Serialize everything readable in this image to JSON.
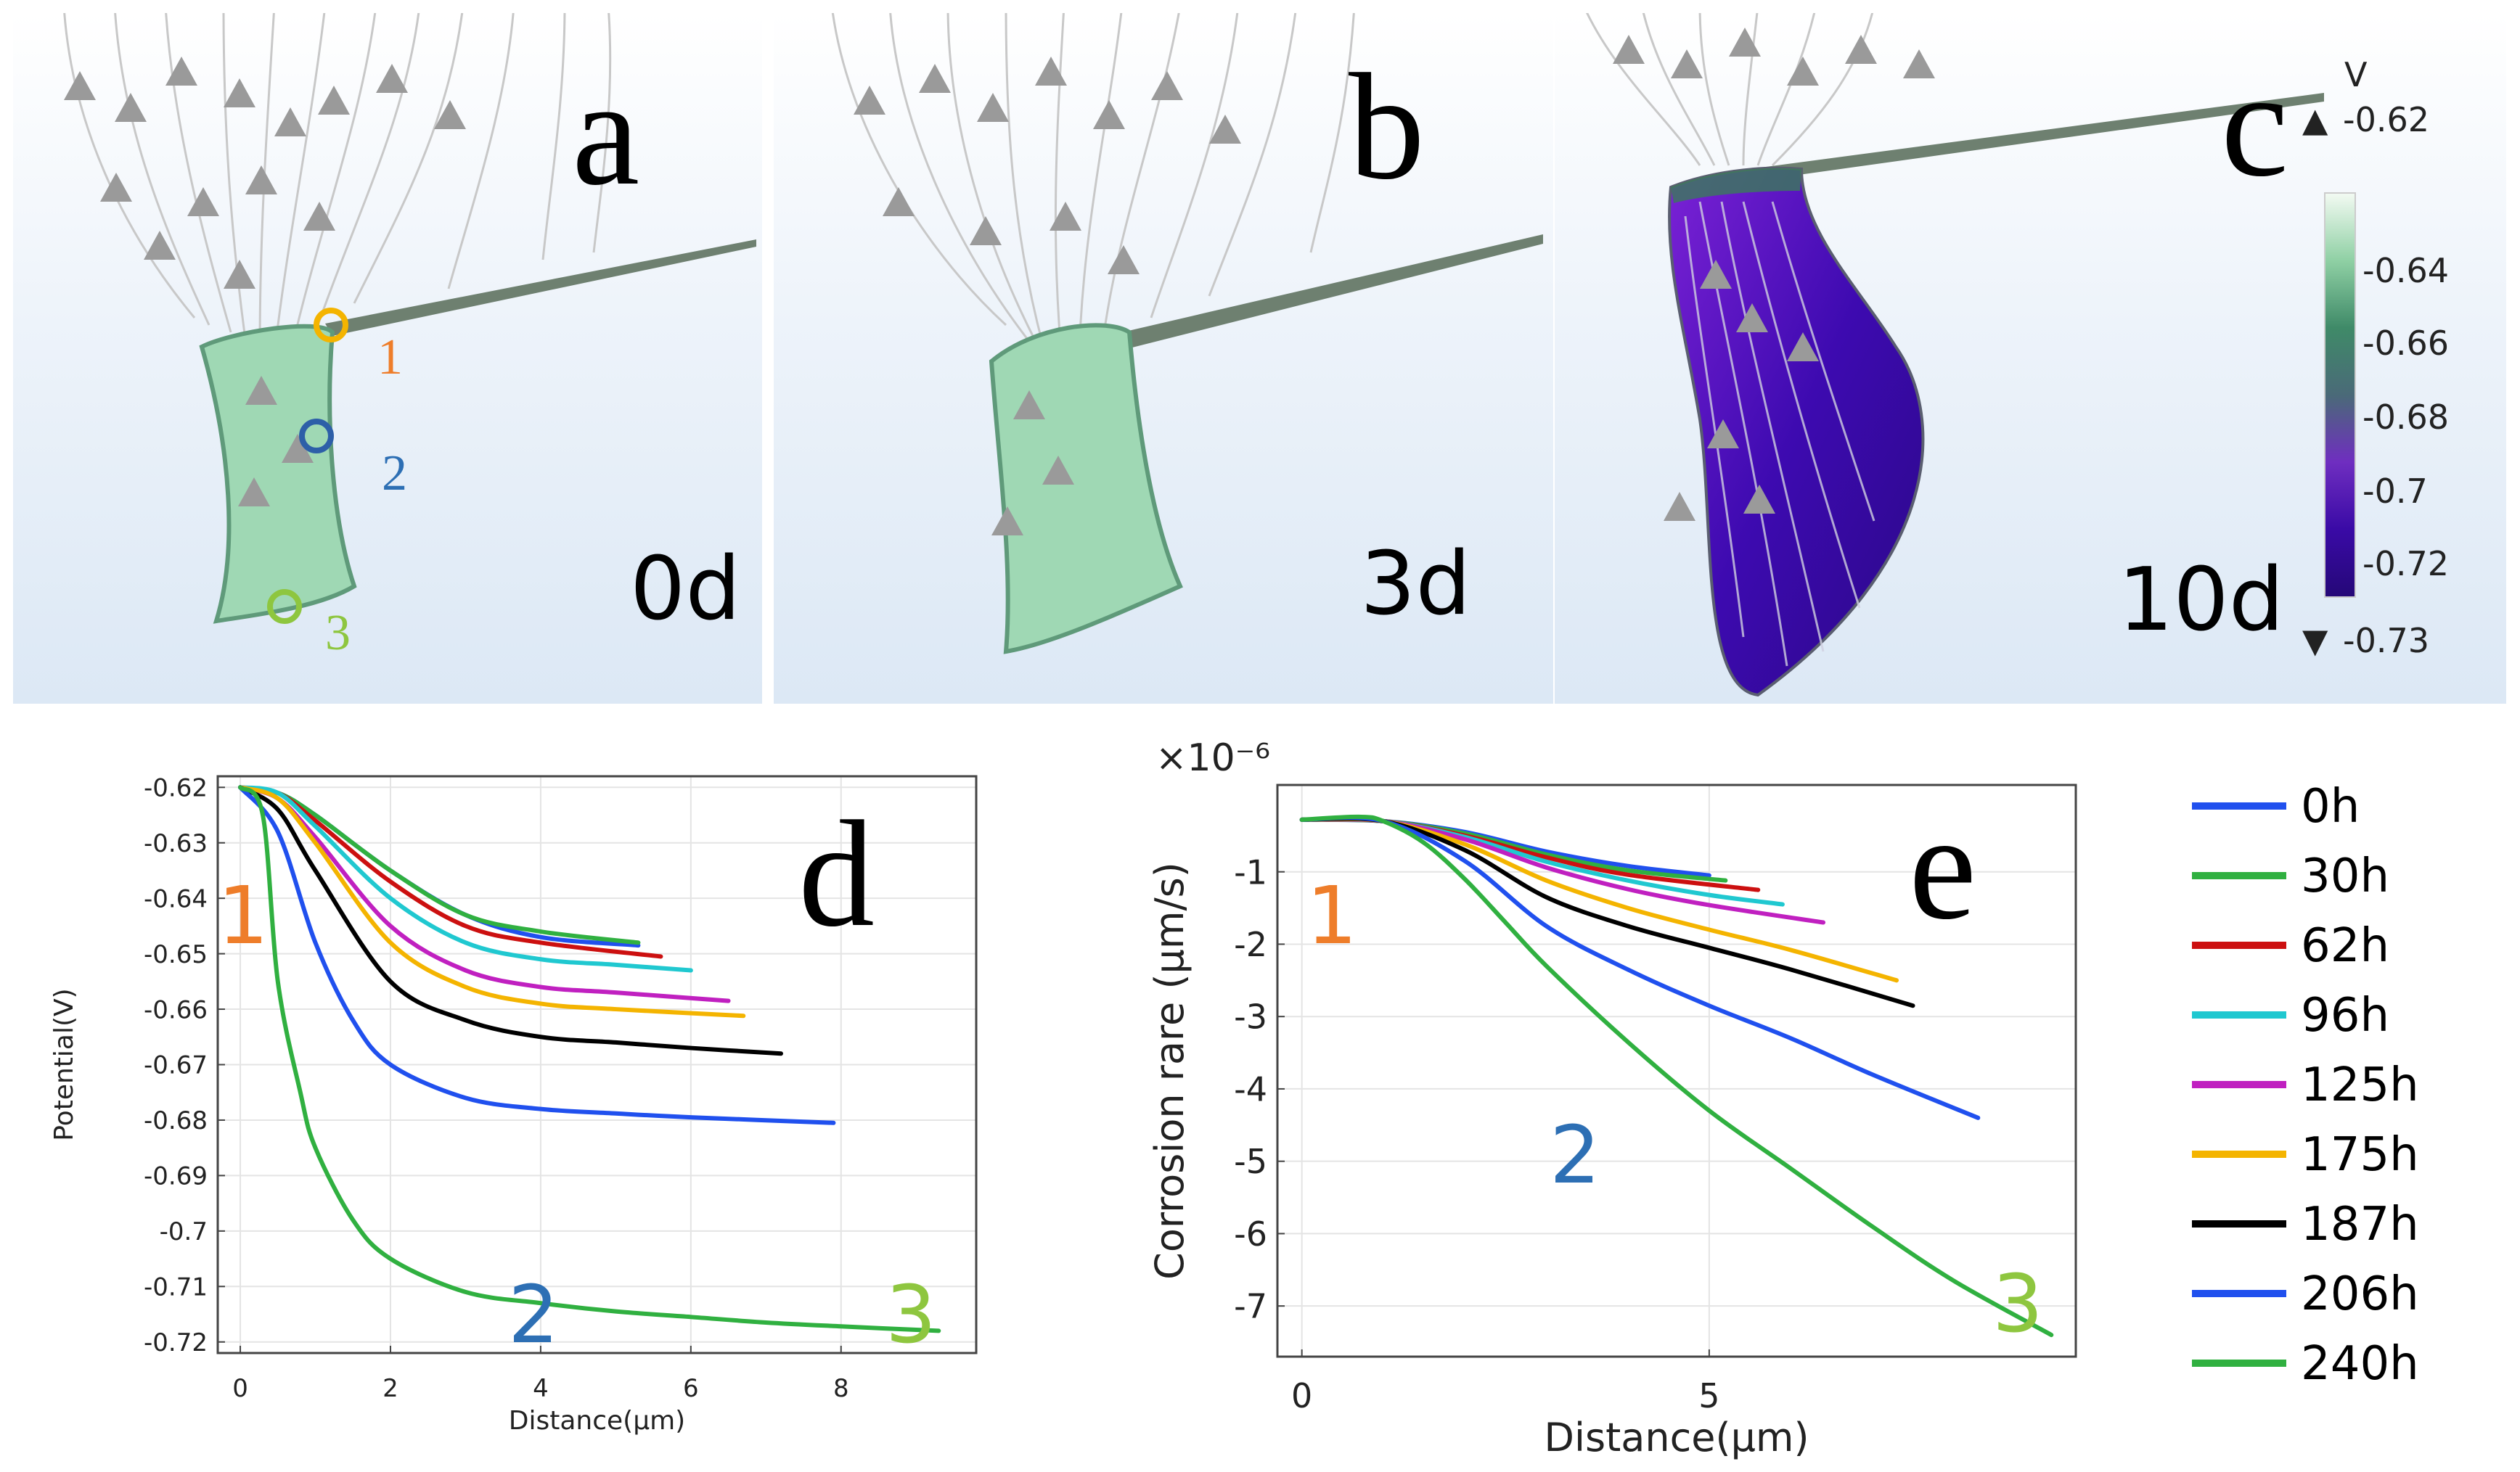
{
  "panels_top": [
    {
      "letter": "a",
      "day": "0d"
    },
    {
      "letter": "b",
      "day": "3d"
    },
    {
      "letter": "c",
      "day": "10d"
    }
  ],
  "point_markers": [
    "1",
    "2",
    "3"
  ],
  "colorbar": {
    "unit": "V",
    "max_label": "-0.62",
    "min_label": "-0.73",
    "ticks": [
      "-0.64",
      "-0.66",
      "-0.68",
      "-0.7",
      "-0.72"
    ],
    "colors": [
      "#f2faf2",
      "#8fd0a4",
      "#3f8a68",
      "#4a6a78",
      "#6f2ec0",
      "#3a0aa6",
      "#250878"
    ]
  },
  "legend": [
    {
      "label": "0h",
      "color": "#2050ee"
    },
    {
      "label": "30h",
      "color": "#30b040"
    },
    {
      "label": "62h",
      "color": "#cc1010"
    },
    {
      "label": "96h",
      "color": "#20c8d0"
    },
    {
      "label": "125h",
      "color": "#c020c0"
    },
    {
      "label": "175h",
      "color": "#f4b400"
    },
    {
      "label": "187h",
      "color": "#000000"
    },
    {
      "label": "206h",
      "color": "#2050ee"
    },
    {
      "label": "240h",
      "color": "#30b040"
    }
  ],
  "chart_data": [
    {
      "panel": "d",
      "type": "line",
      "xlabel": "Distance(μm)",
      "ylabel": "Potential(V)",
      "xlim": [
        -0.3,
        9.8
      ],
      "ylim": [
        -0.722,
        -0.618
      ],
      "xticks": [
        0,
        2,
        4,
        6,
        8
      ],
      "yticks": [
        -0.62,
        -0.63,
        -0.64,
        -0.65,
        -0.66,
        -0.67,
        -0.68,
        -0.69,
        -0.7,
        -0.71,
        -0.72
      ],
      "xtick_labels": [
        "0",
        "2",
        "4",
        "6",
        "8"
      ],
      "ytick_labels": [
        "-0.62",
        "-0.63",
        "-0.64",
        "-0.65",
        "-0.66",
        "-0.67",
        "-0.68",
        "-0.69",
        "-0.7",
        "-0.71",
        "-0.72"
      ],
      "annotations": [
        "1",
        "2",
        "3"
      ],
      "series": [
        {
          "name": "0h",
          "color": "#2050ee",
          "x": [
            0,
            0.5,
            1,
            2,
            3,
            4,
            5.3
          ],
          "y": [
            -0.62,
            -0.621,
            -0.625,
            -0.635,
            -0.643,
            -0.647,
            -0.6485
          ]
        },
        {
          "name": "30h",
          "color": "#30b040",
          "x": [
            0,
            0.5,
            1,
            2,
            3,
            4,
            5.3
          ],
          "y": [
            -0.62,
            -0.621,
            -0.625,
            -0.635,
            -0.643,
            -0.646,
            -0.648
          ]
        },
        {
          "name": "62h",
          "color": "#cc1010",
          "x": [
            0,
            0.5,
            1,
            2,
            3,
            4,
            5.6
          ],
          "y": [
            -0.62,
            -0.621,
            -0.626,
            -0.637,
            -0.645,
            -0.648,
            -0.6505
          ]
        },
        {
          "name": "96h",
          "color": "#20c8d0",
          "x": [
            0,
            0.5,
            1,
            2,
            3,
            4,
            5,
            6
          ],
          "y": [
            -0.62,
            -0.621,
            -0.627,
            -0.64,
            -0.648,
            -0.651,
            -0.652,
            -0.653
          ]
        },
        {
          "name": "125h",
          "color": "#c020c0",
          "x": [
            0,
            0.5,
            1,
            2,
            3,
            4,
            5,
            6.5
          ],
          "y": [
            -0.62,
            -0.622,
            -0.629,
            -0.645,
            -0.653,
            -0.656,
            -0.657,
            -0.6585
          ]
        },
        {
          "name": "175h",
          "color": "#f4b400",
          "x": [
            0,
            0.5,
            1,
            2,
            3,
            4,
            5,
            6.7
          ],
          "y": [
            -0.62,
            -0.622,
            -0.63,
            -0.648,
            -0.656,
            -0.659,
            -0.66,
            -0.6612
          ]
        },
        {
          "name": "187h",
          "color": "#000000",
          "x": [
            0,
            0.5,
            1,
            2,
            3,
            4,
            5,
            6,
            7.2
          ],
          "y": [
            -0.62,
            -0.624,
            -0.635,
            -0.655,
            -0.662,
            -0.665,
            -0.666,
            -0.667,
            -0.668
          ]
        },
        {
          "name": "206h",
          "color": "#2050ee",
          "x": [
            0,
            0.5,
            1,
            1.5,
            2,
            3,
            4,
            5,
            6,
            7.9
          ],
          "y": [
            -0.62,
            -0.628,
            -0.648,
            -0.662,
            -0.67,
            -0.676,
            -0.678,
            -0.6788,
            -0.6795,
            -0.6805
          ]
        },
        {
          "name": "240h",
          "color": "#30b040",
          "x": [
            0,
            0.3,
            0.5,
            0.8,
            1,
            1.5,
            2,
            3,
            4,
            5,
            6,
            7,
            8,
            9.3
          ],
          "y": [
            -0.62,
            -0.625,
            -0.655,
            -0.675,
            -0.685,
            -0.698,
            -0.705,
            -0.711,
            -0.713,
            -0.7145,
            -0.7155,
            -0.7165,
            -0.7172,
            -0.718
          ]
        }
      ]
    },
    {
      "panel": "e",
      "type": "line",
      "xlabel": "Distance(μm)",
      "ylabel": "Corrosion rare (μm/s)",
      "y_multiplier": "×10⁻⁶",
      "xlim": [
        -0.3,
        9.5
      ],
      "ylim": [
        -7.7,
        0.2
      ],
      "xticks": [
        0,
        5
      ],
      "yticks": [
        -1,
        -2,
        -3,
        -4,
        -5,
        -6,
        -7
      ],
      "xtick_labels": [
        "0",
        "5"
      ],
      "ytick_labels": [
        "-1",
        "-2",
        "-3",
        "-4",
        "-5",
        "-6",
        "-7"
      ],
      "annotations": [
        "1",
        "2",
        "3"
      ],
      "series": [
        {
          "name": "0h",
          "color": "#2050ee",
          "x": [
            0,
            1,
            2,
            3,
            4,
            5
          ],
          "y": [
            -0.28,
            -0.3,
            -0.45,
            -0.72,
            -0.92,
            -1.05
          ]
        },
        {
          "name": "30h",
          "color": "#30b040",
          "x": [
            0,
            1,
            2,
            3,
            4,
            5.2
          ],
          "y": [
            -0.28,
            -0.3,
            -0.47,
            -0.76,
            -0.98,
            -1.12
          ]
        },
        {
          "name": "62h",
          "color": "#cc1010",
          "x": [
            0,
            1,
            2,
            3,
            4,
            5.6
          ],
          "y": [
            -0.28,
            -0.3,
            -0.5,
            -0.8,
            -1.04,
            -1.25
          ]
        },
        {
          "name": "96h",
          "color": "#20c8d0",
          "x": [
            0,
            1,
            2,
            3,
            4,
            5,
            5.9
          ],
          "y": [
            -0.28,
            -0.3,
            -0.52,
            -0.86,
            -1.12,
            -1.32,
            -1.45
          ]
        },
        {
          "name": "125h",
          "color": "#c020c0",
          "x": [
            0,
            1,
            2,
            3,
            4,
            5,
            6.4
          ],
          "y": [
            -0.28,
            -0.3,
            -0.55,
            -0.94,
            -1.24,
            -1.46,
            -1.7
          ]
        },
        {
          "name": "175h",
          "color": "#f4b400",
          "x": [
            0,
            1,
            2,
            3,
            4,
            5,
            6,
            7.3
          ],
          "y": [
            -0.28,
            -0.3,
            -0.62,
            -1.12,
            -1.5,
            -1.8,
            -2.08,
            -2.5
          ]
        },
        {
          "name": "187h",
          "color": "#000000",
          "x": [
            0,
            1,
            2,
            3,
            4,
            5,
            6,
            7.5
          ],
          "y": [
            -0.28,
            -0.3,
            -0.7,
            -1.35,
            -1.75,
            -2.05,
            -2.35,
            -2.85
          ]
        },
        {
          "name": "206h",
          "color": "#2050ee",
          "x": [
            0,
            1,
            2,
            3,
            4,
            5,
            6,
            7,
            8.3
          ],
          "y": [
            -0.28,
            -0.3,
            -0.85,
            -1.75,
            -2.35,
            -2.85,
            -3.3,
            -3.8,
            -4.4
          ]
        },
        {
          "name": "240h",
          "color": "#30b040",
          "x": [
            0,
            0.7,
            1,
            1.5,
            2,
            2.5,
            3,
            4,
            5,
            6,
            7,
            8,
            9.2
          ],
          "y": [
            -0.28,
            -0.24,
            -0.3,
            -0.6,
            -1.1,
            -1.7,
            -2.3,
            -3.35,
            -4.3,
            -5.1,
            -5.9,
            -6.65,
            -7.4
          ]
        }
      ]
    }
  ]
}
